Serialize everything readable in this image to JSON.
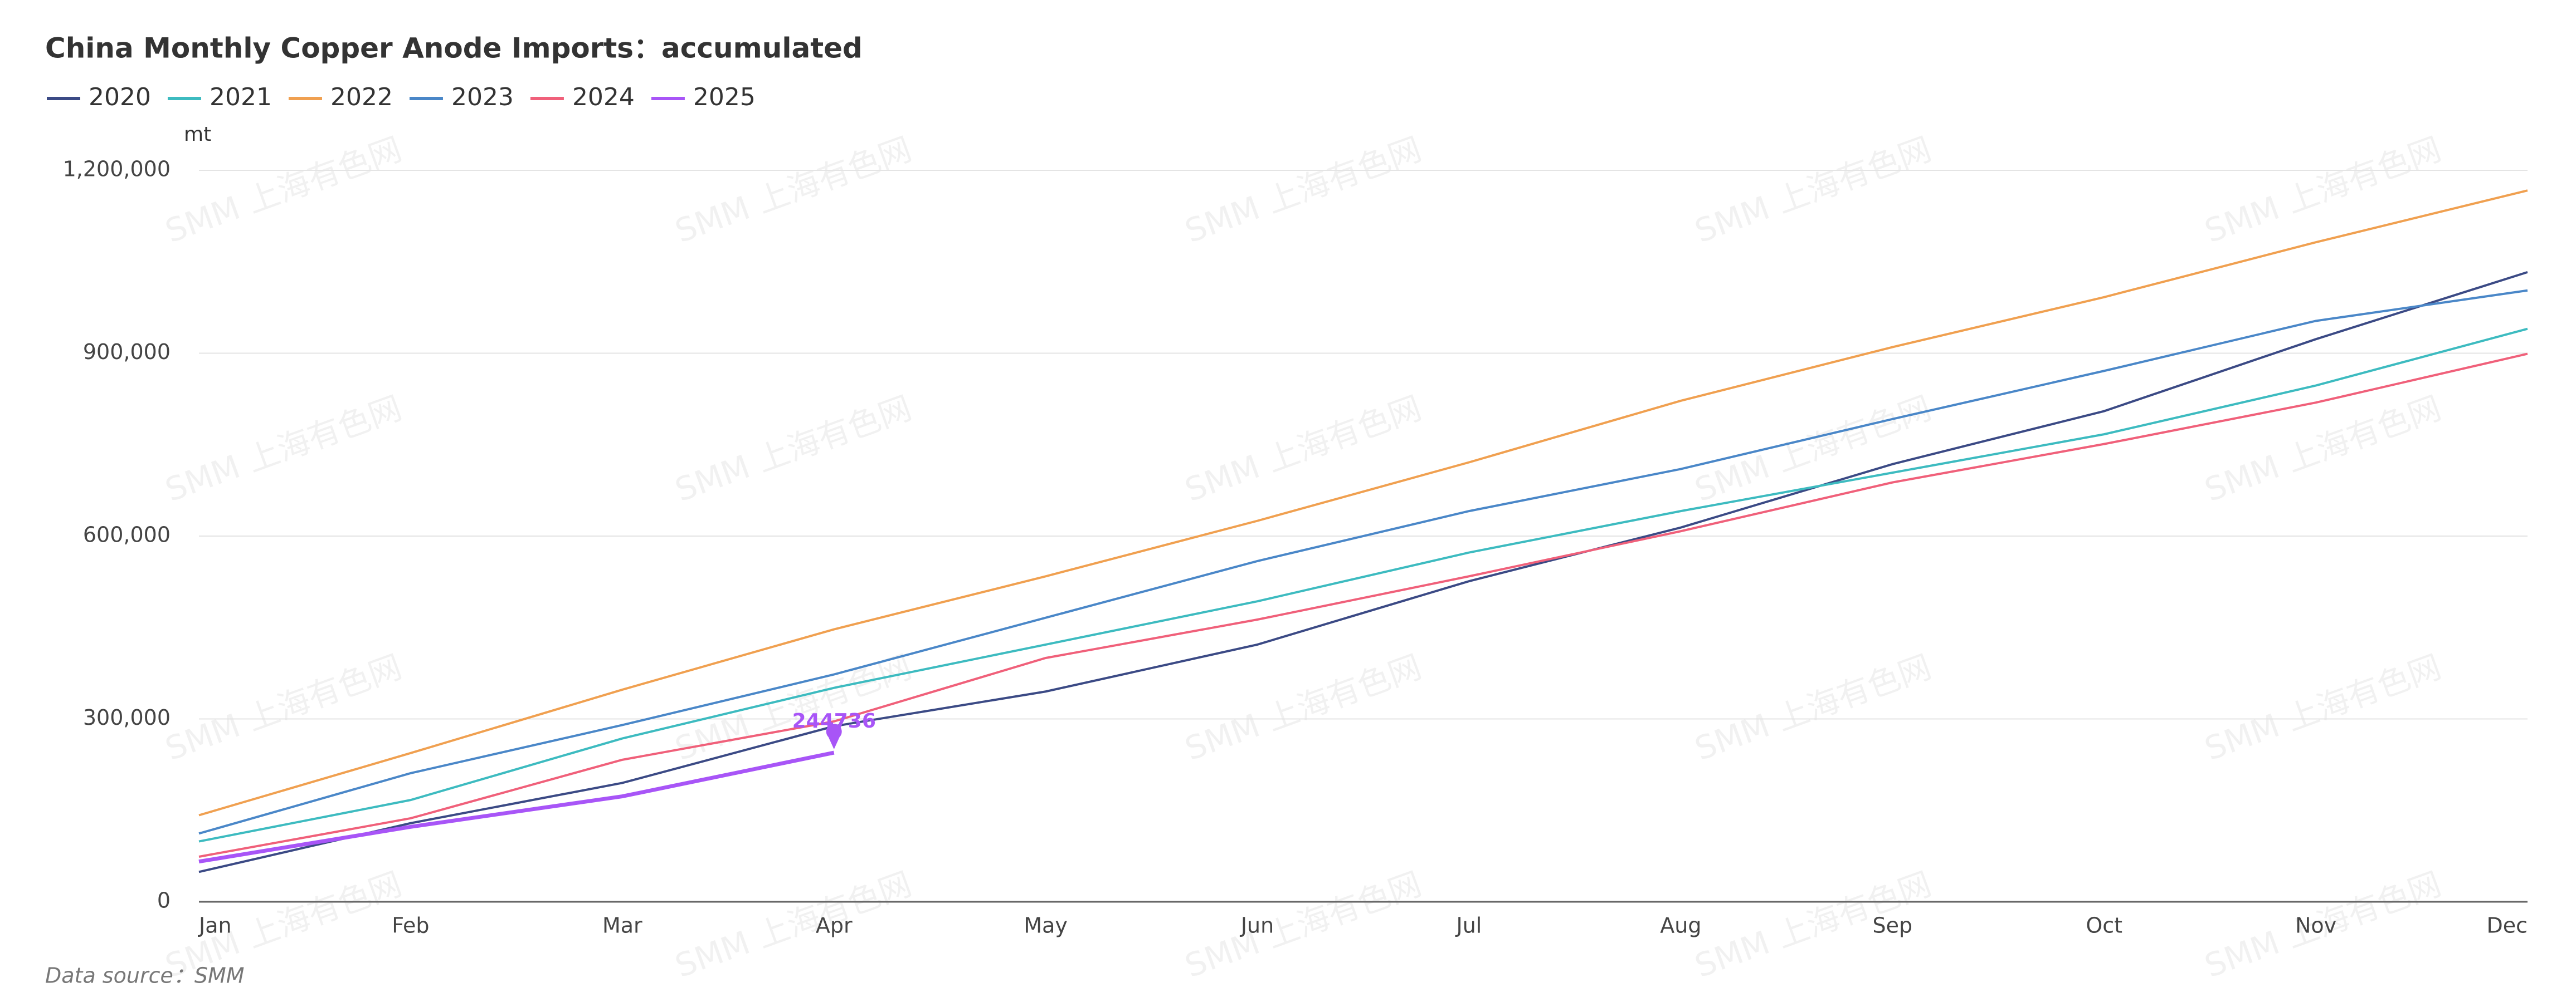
{
  "chart_data": {
    "type": "line",
    "title": "China Monthly Copper Anode Imports：accumulated",
    "y_unit": "mt",
    "source": "Data source：SMM",
    "watermark": "SMM 上海有色网",
    "categories": [
      "Jan",
      "Feb",
      "Mar",
      "Apr",
      "May",
      "Jun",
      "Jul",
      "Aug",
      "Sep",
      "Oct",
      "Nov",
      "Dec"
    ],
    "series": [
      {
        "name": "2020",
        "color": "#3b4a85",
        "values": [
          49000,
          129000,
          195000,
          288000,
          345000,
          422000,
          526000,
          614000,
          718000,
          805000,
          923000,
          1033000
        ]
      },
      {
        "name": "2021",
        "color": "#3dbbc0",
        "values": [
          99000,
          167000,
          268000,
          351000,
          422000,
          493000,
          573000,
          641000,
          704000,
          767000,
          847000,
          940000
        ]
      },
      {
        "name": "2022",
        "color": "#f0a050",
        "values": [
          142000,
          244000,
          348000,
          447000,
          534000,
          625000,
          721000,
          822000,
          910000,
          992000,
          1082000,
          1167000
        ]
      },
      {
        "name": "2023",
        "color": "#4a87c8",
        "values": [
          112000,
          211000,
          290000,
          373000,
          466000,
          559000,
          641000,
          710000,
          792000,
          871000,
          953000,
          1003000
        ]
      },
      {
        "name": "2024",
        "color": "#f0607a",
        "values": [
          74000,
          137000,
          233000,
          296000,
          400000,
          463000,
          534000,
          608000,
          688000,
          751000,
          819000,
          899000
        ]
      },
      {
        "name": "2025",
        "color": "#a855f7",
        "values": [
          66000,
          123000,
          173000,
          244736,
          null,
          null,
          null,
          null,
          null,
          null,
          null,
          null
        ]
      }
    ],
    "ylim": [
      0,
      1200000
    ],
    "yticks": [
      0,
      {
        "value": 300000,
        "label": "300,000"
      },
      {
        "value": 600000,
        "label": "600,000"
      },
      {
        "value": 900000,
        "label": "900,000"
      },
      {
        "value": 1200000,
        "label": "1,200,000"
      }
    ],
    "grid": true
  }
}
